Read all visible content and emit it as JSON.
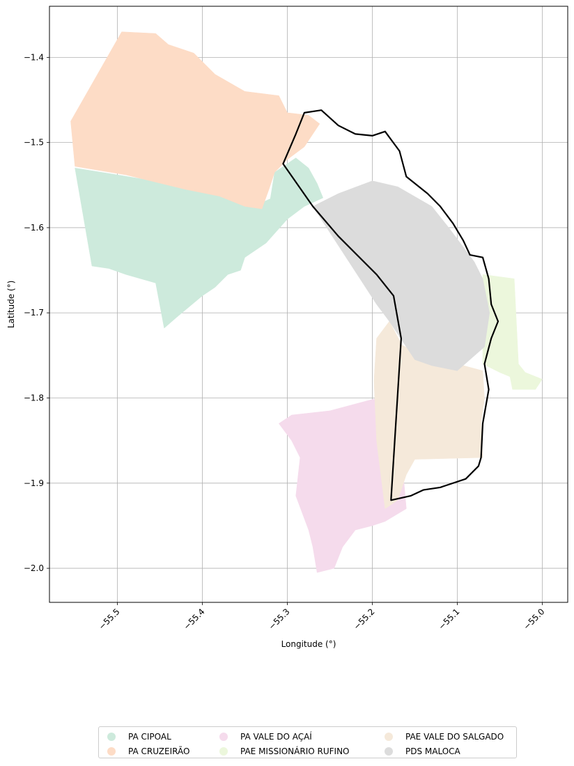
{
  "chart_data": {
    "type": "map",
    "xlabel": "Longitude (°)",
    "ylabel": "Latitude (°)",
    "xlim": [
      -55.58,
      -54.97
    ],
    "ylim": [
      -2.04,
      -1.34
    ],
    "xticks": [
      -55.5,
      -55.4,
      -55.3,
      -55.2,
      -55.1,
      -55.0
    ],
    "xtick_labels": [
      "−55.5",
      "−55.4",
      "−55.3",
      "−55.2",
      "−55.1",
      "−55.0"
    ],
    "yticks": [
      -1.4,
      -1.5,
      -1.6,
      -1.7,
      -1.8,
      -1.9,
      -2.0
    ],
    "ytick_labels": [
      "−1.4",
      "−1.5",
      "−1.6",
      "−1.7",
      "−1.8",
      "−1.9",
      "−2.0"
    ],
    "grid": true,
    "legend_placement": "bottom-center",
    "series": [
      {
        "name": "PA CIPOAL",
        "color": "#cdeadc",
        "polygon": [
          [
            -55.55,
            -1.53
          ],
          [
            -55.5,
            -1.538
          ],
          [
            -55.44,
            -1.548
          ],
          [
            -55.38,
            -1.562
          ],
          [
            -55.34,
            -1.575
          ],
          [
            -55.32,
            -1.566
          ],
          [
            -55.315,
            -1.535
          ],
          [
            -55.29,
            -1.518
          ],
          [
            -55.275,
            -1.53
          ],
          [
            -55.265,
            -1.548
          ],
          [
            -55.258,
            -1.565
          ],
          [
            -55.28,
            -1.575
          ],
          [
            -55.3,
            -1.59
          ],
          [
            -55.325,
            -1.618
          ],
          [
            -55.35,
            -1.635
          ],
          [
            -55.355,
            -1.65
          ],
          [
            -55.37,
            -1.655
          ],
          [
            -55.385,
            -1.67
          ],
          [
            -55.4,
            -1.68
          ],
          [
            -55.43,
            -1.705
          ],
          [
            -55.445,
            -1.718
          ],
          [
            -55.455,
            -1.665
          ],
          [
            -55.49,
            -1.655
          ],
          [
            -55.51,
            -1.648
          ],
          [
            -55.53,
            -1.645
          ]
        ]
      },
      {
        "name": "PA CRUZEIRÃO",
        "color": "#fddcc6",
        "polygon": [
          [
            -55.555,
            -1.475
          ],
          [
            -55.495,
            -1.37
          ],
          [
            -55.455,
            -1.372
          ],
          [
            -55.44,
            -1.385
          ],
          [
            -55.41,
            -1.395
          ],
          [
            -55.385,
            -1.42
          ],
          [
            -55.35,
            -1.44
          ],
          [
            -55.31,
            -1.445
          ],
          [
            -55.3,
            -1.465
          ],
          [
            -55.275,
            -1.468
          ],
          [
            -55.262,
            -1.478
          ],
          [
            -55.28,
            -1.505
          ],
          [
            -55.3,
            -1.52
          ],
          [
            -55.315,
            -1.535
          ],
          [
            -55.322,
            -1.556
          ],
          [
            -55.33,
            -1.578
          ],
          [
            -55.35,
            -1.575
          ],
          [
            -55.38,
            -1.563
          ],
          [
            -55.42,
            -1.555
          ],
          [
            -55.49,
            -1.538
          ],
          [
            -55.55,
            -1.528
          ]
        ]
      },
      {
        "name": "PA VALE DO AÇAÍ",
        "color": "#f5dbec",
        "polygon": [
          [
            -55.175,
            -1.795
          ],
          [
            -55.168,
            -1.84
          ],
          [
            -55.16,
            -1.93
          ],
          [
            -55.185,
            -1.945
          ],
          [
            -55.2,
            -1.95
          ],
          [
            -55.22,
            -1.955
          ],
          [
            -55.235,
            -1.975
          ],
          [
            -55.245,
            -2.0
          ],
          [
            -55.265,
            -2.005
          ],
          [
            -55.27,
            -1.975
          ],
          [
            -55.275,
            -1.955
          ],
          [
            -55.29,
            -1.915
          ],
          [
            -55.285,
            -1.87
          ],
          [
            -55.295,
            -1.85
          ],
          [
            -55.31,
            -1.83
          ],
          [
            -55.295,
            -1.82
          ],
          [
            -55.25,
            -1.815
          ]
        ]
      },
      {
        "name": "PAE MISSIONÁRIO RUFINO",
        "color": "#ecf7dc",
        "polygon": [
          [
            -55.07,
            -1.655
          ],
          [
            -55.033,
            -1.66
          ],
          [
            -55.028,
            -1.76
          ],
          [
            -55.02,
            -1.77
          ],
          [
            -55.0,
            -1.778
          ],
          [
            -55.008,
            -1.79
          ],
          [
            -55.035,
            -1.79
          ],
          [
            -55.038,
            -1.775
          ],
          [
            -55.05,
            -1.77
          ],
          [
            -55.07,
            -1.76
          ]
        ]
      },
      {
        "name": "PAE VALE DO SALGADO",
        "color": "#f5e9da",
        "polygon": [
          [
            -55.195,
            -1.73
          ],
          [
            -55.18,
            -1.71
          ],
          [
            -55.165,
            -1.738
          ],
          [
            -55.14,
            -1.75
          ],
          [
            -55.1,
            -1.76
          ],
          [
            -55.07,
            -1.768
          ],
          [
            -55.068,
            -1.8
          ],
          [
            -55.072,
            -1.83
          ],
          [
            -55.07,
            -1.87
          ],
          [
            -55.15,
            -1.872
          ],
          [
            -55.16,
            -1.89
          ],
          [
            -55.17,
            -1.92
          ],
          [
            -55.185,
            -1.93
          ],
          [
            -55.195,
            -1.85
          ],
          [
            -55.198,
            -1.78
          ]
        ]
      },
      {
        "name": "PDS MALOCA",
        "color": "#dcdcdc",
        "polygon": [
          [
            -55.27,
            -1.575
          ],
          [
            -55.24,
            -1.56
          ],
          [
            -55.2,
            -1.545
          ],
          [
            -55.17,
            -1.552
          ],
          [
            -55.13,
            -1.575
          ],
          [
            -55.11,
            -1.6
          ],
          [
            -55.095,
            -1.62
          ],
          [
            -55.08,
            -1.64
          ],
          [
            -55.07,
            -1.66
          ],
          [
            -55.062,
            -1.7
          ],
          [
            -55.068,
            -1.74
          ],
          [
            -55.1,
            -1.768
          ],
          [
            -55.13,
            -1.762
          ],
          [
            -55.15,
            -1.755
          ],
          [
            -55.18,
            -1.71
          ],
          [
            -55.195,
            -1.69
          ]
        ]
      }
    ],
    "outline": {
      "color": "#000000",
      "polygon": [
        [
          -55.305,
          -1.525
        ],
        [
          -55.29,
          -1.49
        ],
        [
          -55.28,
          -1.465
        ],
        [
          -55.26,
          -1.462
        ],
        [
          -55.24,
          -1.48
        ],
        [
          -55.22,
          -1.49
        ],
        [
          -55.2,
          -1.492
        ],
        [
          -55.185,
          -1.487
        ],
        [
          -55.168,
          -1.51
        ],
        [
          -55.16,
          -1.54
        ],
        [
          -55.135,
          -1.56
        ],
        [
          -55.12,
          -1.575
        ],
        [
          -55.105,
          -1.595
        ],
        [
          -55.093,
          -1.615
        ],
        [
          -55.085,
          -1.632
        ],
        [
          -55.07,
          -1.635
        ],
        [
          -55.063,
          -1.66
        ],
        [
          -55.06,
          -1.69
        ],
        [
          -55.052,
          -1.71
        ],
        [
          -55.06,
          -1.73
        ],
        [
          -55.068,
          -1.76
        ],
        [
          -55.063,
          -1.79
        ],
        [
          -55.07,
          -1.83
        ],
        [
          -55.072,
          -1.87
        ],
        [
          -55.075,
          -1.88
        ],
        [
          -55.09,
          -1.895
        ],
        [
          -55.12,
          -1.905
        ],
        [
          -55.14,
          -1.908
        ],
        [
          -55.155,
          -1.915
        ],
        [
          -55.178,
          -1.92
        ],
        [
          -55.166,
          -1.73
        ],
        [
          -55.175,
          -1.68
        ],
        [
          -55.195,
          -1.655
        ],
        [
          -55.24,
          -1.61
        ],
        [
          -55.27,
          -1.575
        ]
      ]
    }
  },
  "legend": {
    "items": [
      {
        "label": "PA CIPOAL",
        "color": "#cdeadc"
      },
      {
        "label": "PA CRUZEIRÃO",
        "color": "#fddcc6"
      },
      {
        "label": "PA VALE DO AÇAÍ",
        "color": "#f5dbec"
      },
      {
        "label": "PAE MISSIONÁRIO RUFINO",
        "color": "#ecf7dc"
      },
      {
        "label": "PAE VALE DO SALGADO",
        "color": "#f5e9da"
      },
      {
        "label": "PDS MALOCA",
        "color": "#dcdcdc"
      }
    ]
  }
}
